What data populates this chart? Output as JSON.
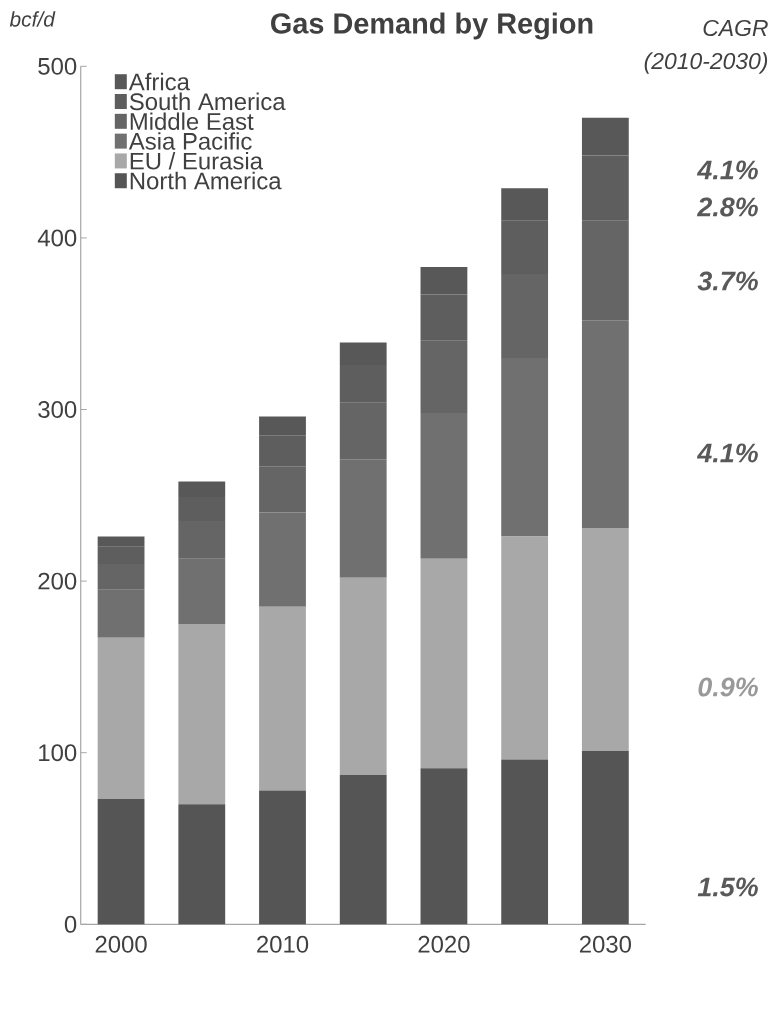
{
  "chart_data": {
    "type": "bar",
    "title": "Gas Demand by Region",
    "ylabel": "bcf/d",
    "categories": [
      "2000",
      null,
      "2010",
      null,
      "2020",
      null,
      "2030"
    ],
    "stacked": true,
    "legend": "top left",
    "ylim": [
      0,
      500
    ],
    "yticks": [
      0,
      100,
      200,
      300,
      400,
      500
    ],
    "series": [
      {
        "name": "North America",
        "color": "#555555",
        "values": [
          73,
          70,
          78,
          87,
          91,
          96,
          101
        ]
      },
      {
        "name": "EU / Eurasia",
        "color": "#a8a8a8",
        "values": [
          94,
          105,
          107,
          115,
          122,
          130,
          130
        ]
      },
      {
        "name": "Asia Pacific",
        "color": "#707070",
        "values": [
          28,
          38,
          55,
          69,
          85,
          104,
          121
        ]
      },
      {
        "name": "Middle East",
        "color": "#656565",
        "values": [
          15,
          22,
          27,
          33,
          42,
          49,
          58
        ]
      },
      {
        "name": "South America",
        "color": "#5e5e5e",
        "values": [
          10,
          14,
          18,
          22,
          27,
          31,
          38
        ]
      },
      {
        "name": "Africa",
        "color": "#585858",
        "values": [
          6,
          9,
          11,
          13,
          16,
          19,
          22
        ]
      }
    ],
    "annotations": [
      "CAGR",
      "(2010-2030)",
      "4.1%",
      "2.8%",
      "3.7%",
      "4.1%",
      "0.9%",
      "1.5%"
    ]
  }
}
